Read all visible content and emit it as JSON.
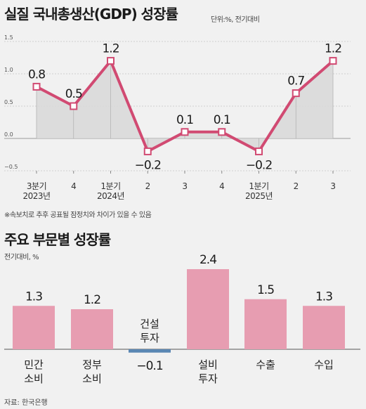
{
  "chart_data": [
    {
      "type": "line",
      "title": "실질 국내총생산(GDP) 성장률",
      "unit_note": "단위:%, 전기대비",
      "categories": [
        [
          "3분기",
          "2023년"
        ],
        [
          "4"
        ],
        [
          "1분기",
          "2024년"
        ],
        [
          "2"
        ],
        [
          "3"
        ],
        [
          "4"
        ],
        [
          "1분기",
          "2025년"
        ],
        [
          "2"
        ],
        [
          "3"
        ]
      ],
      "values": [
        0.8,
        0.5,
        1.2,
        -0.2,
        0.1,
        0.1,
        -0.2,
        0.7,
        1.2
      ],
      "value_labels": [
        "0.8",
        "0.5",
        "1.2",
        "−0.2",
        "0.1",
        "0.1",
        "−0.2",
        "0.7",
        "1.2"
      ],
      "yticks": [
        -0.5,
        0,
        0.5,
        1.0,
        1.5
      ],
      "ytick_labels": [
        "−0.5",
        "0.0",
        "0.5",
        "1.0",
        "1.5"
      ],
      "ylim": [
        -0.5,
        1.5
      ],
      "grid": true,
      "footnote": "※속보치로 추후 공표될 잠정치와 차이가 있을 수 있음"
    },
    {
      "type": "bar",
      "title": "주요 부문별 성장률",
      "unit_note": "전기대비, %",
      "categories": [
        [
          "민간",
          "소비"
        ],
        [
          "정부",
          "소비"
        ],
        [
          "건설",
          "투자"
        ],
        [
          "설비",
          "투자"
        ],
        [
          "수출"
        ],
        [
          "수입"
        ]
      ],
      "values": [
        1.3,
        1.2,
        -0.1,
        2.4,
        1.5,
        1.3
      ],
      "value_labels": [
        "1.3",
        "1.2",
        "−0.1",
        "2.4",
        "1.5",
        "1.3"
      ]
    }
  ],
  "colors": {
    "line": "#d14a72",
    "area": "#d8d8d8",
    "bar_positive": "#e79db1",
    "bar_negative": "#5a87b3"
  },
  "source": "자료: 한국은행"
}
